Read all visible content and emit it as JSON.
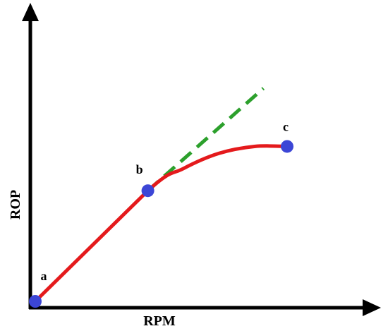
{
  "chart_data": {
    "type": "line",
    "title": "",
    "xlabel": "RPM",
    "ylabel": "ROP",
    "grid": false,
    "legend": "none",
    "points": [
      {
        "label": "a",
        "x": 0,
        "y": 0
      },
      {
        "label": "b",
        "x": 38,
        "y": 40
      },
      {
        "label": "c",
        "x": 85,
        "y": 56
      }
    ],
    "series": [
      {
        "type": "curve",
        "x": [
          0,
          38,
          50,
          62,
          74,
          85
        ],
        "y": [
          0,
          40,
          48,
          53.5,
          56,
          56
        ],
        "color": "#e41a1c",
        "style": "solid"
      },
      {
        "type": "extension",
        "x": [
          38,
          77
        ],
        "y": [
          40,
          77
        ],
        "color": "#2ca02c",
        "style": "dashed"
      }
    ],
    "xlim": [
      0,
      100
    ],
    "ylim": [
      0,
      100
    ],
    "colors": {
      "axis": "#000000",
      "curve": "#e41a1c",
      "tangent": "#2ca02c",
      "point": "#3c46d6"
    }
  }
}
